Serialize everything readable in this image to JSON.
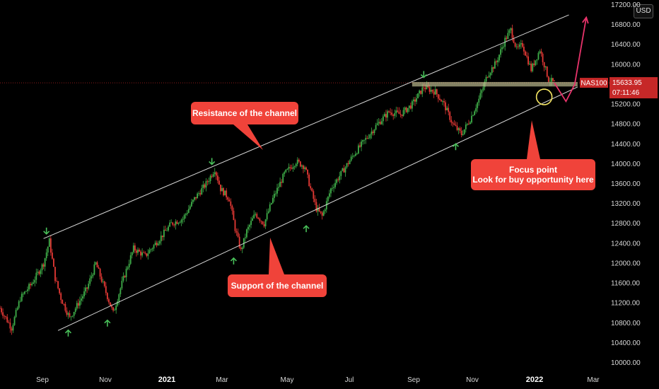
{
  "currency": "USD",
  "chart_data": {
    "type": "candlestick",
    "symbol": "NAS100",
    "last_price": "15633.95",
    "countdown": "07:11:46",
    "x_ticks": [
      {
        "label": "Sep",
        "bold": false
      },
      {
        "label": "Nov",
        "bold": false
      },
      {
        "label": "2021",
        "bold": true
      },
      {
        "label": "Mar",
        "bold": false
      },
      {
        "label": "May",
        "bold": false
      },
      {
        "label": "Jul",
        "bold": false
      },
      {
        "label": "Sep",
        "bold": false
      },
      {
        "label": "Nov",
        "bold": false
      },
      {
        "label": "2022",
        "bold": true
      },
      {
        "label": "Mar",
        "bold": false
      }
    ],
    "y_ticks": [
      17200,
      16800,
      16400,
      16000,
      15600,
      15200,
      14800,
      14400,
      14000,
      13600,
      13200,
      12800,
      12400,
      12000,
      11600,
      11200,
      10800,
      10400,
      10000
    ],
    "y_tick_labels": [
      "17200.00",
      "16800.00",
      "16400.00",
      "16000.00",
      "15600.00",
      "15200.00",
      "14800.00",
      "14400.00",
      "14000.00",
      "13600.00",
      "13200.00",
      "12800.00",
      "12400.00",
      "12000.00",
      "11600.00",
      "11200.00",
      "10800.00",
      "10400.00",
      "10000.00"
    ],
    "ylim": [
      9900,
      17300
    ],
    "xlim_index": [
      0,
      420
    ],
    "price_path": [
      [
        0,
        11100
      ],
      [
        8,
        10700
      ],
      [
        14,
        11300
      ],
      [
        22,
        11600
      ],
      [
        30,
        12000
      ],
      [
        34,
        12450
      ],
      [
        38,
        11700
      ],
      [
        42,
        11300
      ],
      [
        48,
        10900
      ],
      [
        54,
        11200
      ],
      [
        60,
        11500
      ],
      [
        66,
        12000
      ],
      [
        72,
        11500
      ],
      [
        78,
        11000
      ],
      [
        84,
        11600
      ],
      [
        92,
        12300
      ],
      [
        100,
        12150
      ],
      [
        110,
        12500
      ],
      [
        118,
        12800
      ],
      [
        126,
        12900
      ],
      [
        134,
        13300
      ],
      [
        142,
        13600
      ],
      [
        148,
        13900
      ],
      [
        152,
        13500
      ],
      [
        158,
        13300
      ],
      [
        162,
        12700
      ],
      [
        166,
        12250
      ],
      [
        170,
        12650
      ],
      [
        176,
        13000
      ],
      [
        182,
        12800
      ],
      [
        188,
        13300
      ],
      [
        196,
        13800
      ],
      [
        204,
        14050
      ],
      [
        210,
        13950
      ],
      [
        214,
        13500
      ],
      [
        218,
        13100
      ],
      [
        222,
        12950
      ],
      [
        228,
        13500
      ],
      [
        236,
        13850
      ],
      [
        244,
        14200
      ],
      [
        252,
        14500
      ],
      [
        260,
        14800
      ],
      [
        268,
        15050
      ],
      [
        276,
        15000
      ],
      [
        284,
        15200
      ],
      [
        292,
        15550
      ],
      [
        300,
        15450
      ],
      [
        306,
        15200
      ],
      [
        312,
        14800
      ],
      [
        318,
        14600
      ],
      [
        324,
        14900
      ],
      [
        330,
        15300
      ],
      [
        336,
        15800
      ],
      [
        342,
        16050
      ],
      [
        348,
        16500
      ],
      [
        352,
        16700
      ],
      [
        356,
        16300
      ],
      [
        360,
        16400
      ],
      [
        366,
        15900
      ],
      [
        372,
        16300
      ],
      [
        378,
        15700
      ],
      [
        382,
        15633
      ]
    ],
    "channel": {
      "upper": [
        [
          30,
          12500
        ],
        [
          392,
          17000
        ]
      ],
      "lower": [
        [
          40,
          10650
        ],
        [
          398,
          15550
        ]
      ]
    },
    "zone": {
      "x_start": 284,
      "x_end": 398,
      "y_low": 15560,
      "y_high": 15650
    },
    "projection": [
      [
        382,
        15633
      ],
      [
        390,
        15260
      ],
      [
        396,
        15600
      ],
      [
        404,
        16950
      ]
    ],
    "focus_point": {
      "x": 375,
      "y": 15350
    },
    "arrows_down": [
      [
        32,
        12550
      ],
      [
        146,
        13950
      ],
      [
        292,
        15700
      ]
    ],
    "arrows_up": [
      [
        47,
        10700
      ],
      [
        74,
        10900
      ],
      [
        161,
        12150
      ],
      [
        211,
        12800
      ],
      [
        314,
        14450
      ]
    ],
    "callouts": [
      {
        "id": "resistance",
        "lines": [
          "Resistance of the channel"
        ]
      },
      {
        "id": "support",
        "lines": [
          "Support of the channel"
        ]
      },
      {
        "id": "focus",
        "lines": [
          "Focus point",
          "Look for buy opportunity here"
        ]
      }
    ]
  }
}
